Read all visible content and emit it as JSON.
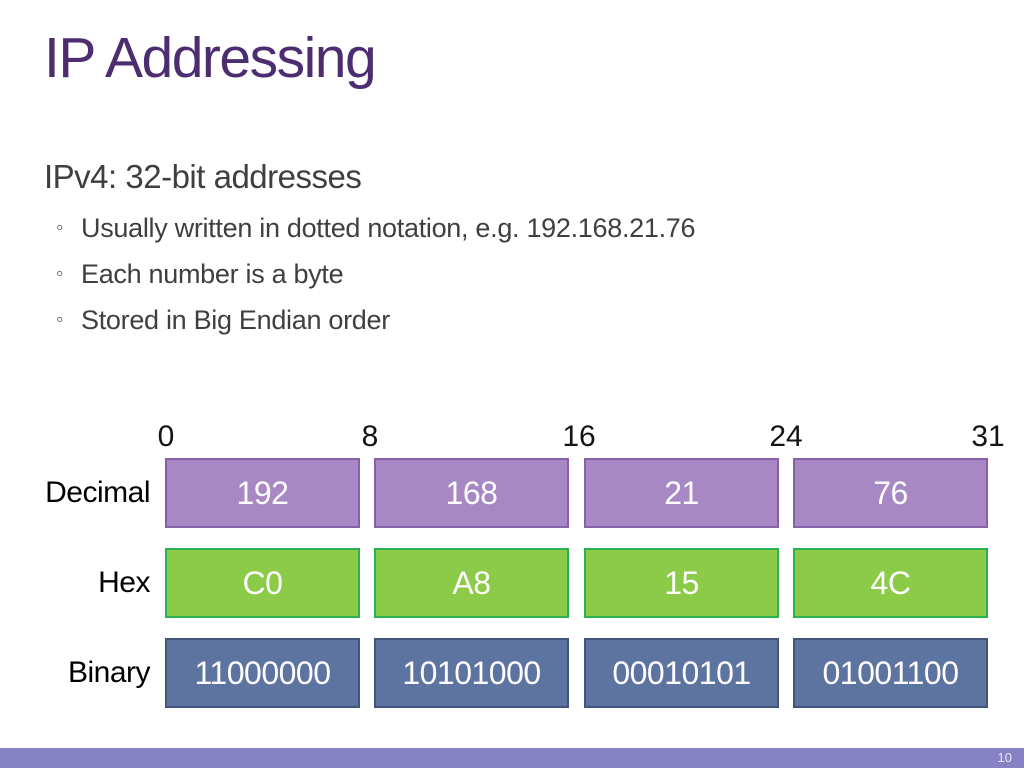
{
  "slide": {
    "title": "IP Addressing",
    "page_number": "10"
  },
  "content": {
    "heading": "IPv4: 32-bit addresses",
    "bullet_marker": "◦",
    "bullets": [
      "Usually written in dotted notation, e.g. 192.168.21.76",
      "Each number is a byte",
      "Stored in Big Endian order"
    ]
  },
  "diagram": {
    "bit_labels": [
      "0",
      "8",
      "16",
      "24",
      "31"
    ],
    "rows": [
      {
        "label": "Decimal",
        "cells": [
          "192",
          "168",
          "21",
          "76"
        ],
        "fill": "#a788c5",
        "border": "#8661a8"
      },
      {
        "label": "Hex",
        "cells": [
          "C0",
          "A8",
          "15",
          "4C"
        ],
        "fill": "#8ccb47",
        "border": "#2bb152"
      },
      {
        "label": "Binary",
        "cells": [
          "11000000",
          "10101000",
          "00010101",
          "01001100"
        ],
        "fill": "#5d73a0",
        "border": "#42547c"
      }
    ]
  },
  "colors": {
    "title_text": "#4c2d70",
    "body_text": "#3f3f42",
    "footer_bar": "#8782c3",
    "cell_text": "#fdfcfe"
  }
}
